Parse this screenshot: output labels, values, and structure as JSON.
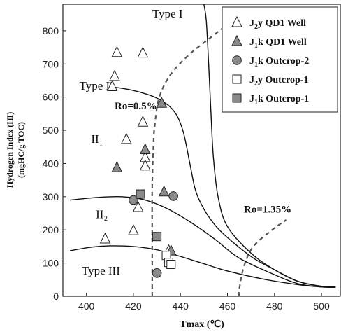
{
  "chart_data": {
    "type": "scatter",
    "xlabel": "Tmax (℃)",
    "ylabel_line1": "Hydrogen Index (HI)",
    "ylabel_line2": "(mgHC/g TOC)",
    "xlim": [
      390,
      508
    ],
    "ylim": [
      0,
      880
    ],
    "x_ticks": [
      400,
      420,
      440,
      460,
      480,
      500
    ],
    "y_ticks": [
      0,
      100,
      200,
      300,
      400,
      500,
      600,
      700,
      800
    ],
    "grid": false,
    "legend_position": "top-right",
    "legend": [
      {
        "key": "j2y_qd1",
        "marker": "triangle-open",
        "main": "J",
        "sub": "2",
        "tail": "y  QD1 Well"
      },
      {
        "key": "j1k_qd1",
        "marker": "triangle-filled",
        "main": "J",
        "sub": "1",
        "tail": "k  QD1 Well"
      },
      {
        "key": "j1k_out2",
        "marker": "circle-filled",
        "main": "J",
        "sub": "1",
        "tail": "k  Outcrop-2"
      },
      {
        "key": "j2y_out1",
        "marker": "square-open",
        "main": "J",
        "sub": "2",
        "tail": "y  Outcrop-1"
      },
      {
        "key": "j1k_out1",
        "marker": "square-filled",
        "main": "J",
        "sub": "1",
        "tail": "k  Outcrop-1"
      }
    ],
    "series": [
      {
        "key": "j2y_qd1",
        "marker": "triangle-open",
        "points": [
          [
            413,
            735
          ],
          [
            424,
            733
          ],
          [
            412,
            663
          ],
          [
            411,
            632
          ],
          [
            424,
            525
          ],
          [
            417,
            473
          ],
          [
            425,
            418
          ],
          [
            425,
            393
          ],
          [
            422,
            268
          ],
          [
            420,
            198
          ],
          [
            408,
            173
          ],
          [
            435,
            138
          ]
        ]
      },
      {
        "key": "j1k_qd1",
        "marker": "triangle-filled",
        "points": [
          [
            432,
            582
          ],
          [
            425,
            442
          ],
          [
            413,
            388
          ],
          [
            433,
            315
          ],
          [
            436,
            137
          ]
        ]
      },
      {
        "key": "j1k_out2",
        "marker": "circle-filled",
        "points": [
          [
            420,
            290
          ],
          [
            437,
            302
          ],
          [
            430,
            70
          ]
        ]
      },
      {
        "key": "j2y_out1",
        "marker": "square-open",
        "points": [
          [
            434,
            123
          ],
          [
            435,
            102
          ],
          [
            436,
            96
          ]
        ]
      },
      {
        "key": "j1k_out1",
        "marker": "square-filled",
        "points": [
          [
            423,
            308
          ],
          [
            430,
            180
          ]
        ]
      }
    ],
    "boundary_curves": [
      {
        "name": "Type I",
        "points": [
          [
            450,
            880
          ],
          [
            451,
            830
          ],
          [
            452,
            700
          ],
          [
            453,
            550
          ],
          [
            454,
            420
          ],
          [
            456,
            300
          ],
          [
            460,
            210
          ],
          [
            470,
            130
          ],
          [
            480,
            80
          ],
          [
            490,
            45
          ],
          [
            500,
            30
          ],
          [
            506,
            28
          ]
        ]
      },
      {
        "name": "Type II upper",
        "points": [
          [
            410,
            632
          ],
          [
            420,
            620
          ],
          [
            430,
            597
          ],
          [
            437,
            560
          ],
          [
            441,
            500
          ],
          [
            444,
            400
          ],
          [
            446,
            330
          ],
          [
            448,
            290
          ],
          [
            452,
            240
          ],
          [
            458,
            190
          ],
          [
            470,
            120
          ],
          [
            480,
            80
          ],
          [
            490,
            45
          ],
          [
            500,
            30
          ],
          [
            506,
            28
          ]
        ]
      },
      {
        "name": "Type II lower",
        "points": [
          [
            393,
            290
          ],
          [
            405,
            298
          ],
          [
            415,
            300
          ],
          [
            425,
            290
          ],
          [
            435,
            262
          ],
          [
            445,
            220
          ],
          [
            455,
            170
          ],
          [
            465,
            115
          ],
          [
            480,
            65
          ],
          [
            490,
            38
          ],
          [
            500,
            28
          ],
          [
            506,
            27
          ]
        ]
      },
      {
        "name": "Type III",
        "points": [
          [
            393,
            137
          ],
          [
            402,
            148
          ],
          [
            410,
            152
          ],
          [
            420,
            150
          ],
          [
            430,
            140
          ],
          [
            440,
            120
          ],
          [
            450,
            98
          ],
          [
            460,
            76
          ],
          [
            475,
            52
          ],
          [
            490,
            35
          ],
          [
            500,
            28
          ],
          [
            506,
            27
          ]
        ]
      }
    ],
    "iso_lines": [
      {
        "label": "Ro=0.5%",
        "points": [
          [
            428,
            0
          ],
          [
            428,
            150
          ],
          [
            428,
            330
          ],
          [
            428.5,
            450
          ],
          [
            429,
            510
          ],
          [
            431,
            600
          ],
          [
            436,
            670
          ],
          [
            444,
            730
          ],
          [
            452,
            775
          ],
          [
            458,
            808
          ]
        ]
      },
      {
        "label": "Ro=1.35%",
        "points": [
          [
            465,
            0
          ],
          [
            465,
            20
          ],
          [
            467,
            90
          ],
          [
            471,
            150
          ],
          [
            479,
            200
          ],
          [
            485,
            230
          ]
        ]
      }
    ],
    "annotations": [
      {
        "text": "Type I",
        "x": 428,
        "y": 840,
        "style": "anno",
        "size": 17
      },
      {
        "text": "Type II",
        "x": 397,
        "y": 623,
        "style": "anno",
        "size": 17
      },
      {
        "text": "Ro=0.5%",
        "x": 412,
        "y": 563,
        "style": "anno-bold",
        "size": 15
      },
      {
        "text": "II₁",
        "x": 402,
        "y": 462,
        "style": "anno",
        "size": 17
      },
      {
        "text": "Ro=1.35%",
        "x": 467,
        "y": 252,
        "style": "anno-bold",
        "size": 15
      },
      {
        "text": "II₂",
        "x": 404,
        "y": 235,
        "style": "anno",
        "size": 17
      },
      {
        "text": "Type III",
        "x": 398,
        "y": 65,
        "style": "anno",
        "size": 17
      }
    ]
  }
}
